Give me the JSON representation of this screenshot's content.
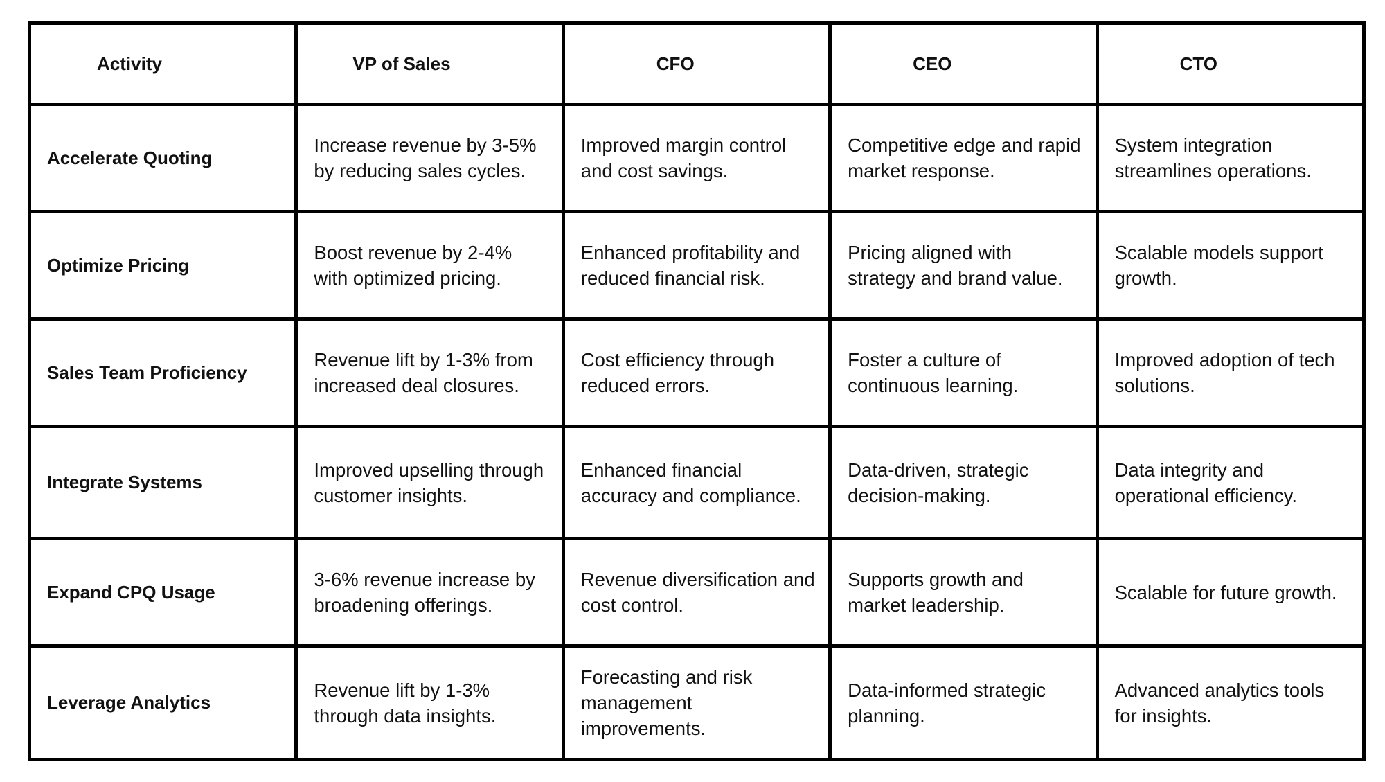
{
  "table": {
    "headers": [
      "Activity",
      "VP of Sales",
      "CFO",
      "CEO",
      "CTO"
    ],
    "rows": [
      [
        "Accelerate Quoting",
        "Increase revenue by 3-5% by reducing sales cycles.",
        "Improved margin control and cost savings.",
        "Competitive edge and rapid market response.",
        "System integration streamlines operations."
      ],
      [
        "Optimize Pricing",
        "Boost revenue by 2-4% with optimized pricing.",
        "Enhanced profitability and reduced financial risk.",
        "Pricing aligned with strategy and brand value.",
        "Scalable models support growth."
      ],
      [
        "Sales Team Proficiency",
        "Revenue lift by 1-3% from increased deal closures.",
        "Cost efficiency through reduced errors.",
        "Foster a culture of continuous learning.",
        "Improved adoption of tech solutions."
      ],
      [
        "Integrate Systems",
        "Improved upselling through customer insights.",
        "Enhanced financial accuracy and compliance.",
        "Data-driven, strategic decision-making.",
        "Data integrity and operational efficiency."
      ],
      [
        "Expand CPQ Usage",
        "3-6% revenue increase by broadening offerings.",
        "Revenue diversification and cost control.",
        "Supports growth and market leadership.",
        "Scalable for future growth."
      ],
      [
        "Leverage Analytics",
        "Revenue lift by 1-3% through data insights.",
        "Forecasting and risk management improvements.",
        "Data-informed strategic planning.",
        "Advanced analytics tools for insights."
      ]
    ]
  }
}
